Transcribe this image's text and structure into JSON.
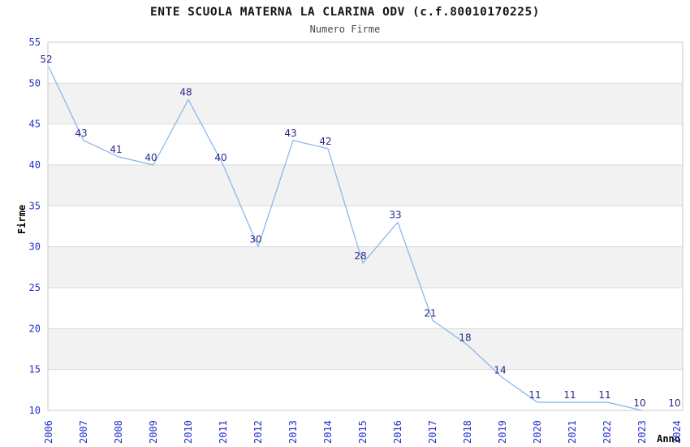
{
  "colors": {
    "line": "#8CB8EA",
    "point_label": "#2A2A8E",
    "tick_label": "#2430CC",
    "title": "#141414",
    "subtitle": "#4A4A4A",
    "axis_title": "#000000",
    "band": "#F2F2F2",
    "gridline": "#D9D9D9",
    "border": "#C9C9C9",
    "background": "#FFFFFF"
  },
  "chart_data": {
    "type": "line",
    "title": "ENTE SCUOLA MATERNA LA CLARINA ODV (c.f.80010170225)",
    "subtitle": "Numero Firme",
    "xlabel": "Anno",
    "ylabel": "Firme",
    "categories": [
      "2006",
      "2007",
      "2008",
      "2009",
      "2010",
      "2011",
      "2012",
      "2013",
      "2014",
      "2015",
      "2016",
      "2017",
      "2018",
      "2019",
      "2020",
      "2021",
      "2022",
      "2023",
      "2024"
    ],
    "values": [
      52,
      43,
      41,
      40,
      48,
      40,
      30,
      43,
      42,
      28,
      33,
      21,
      18,
      14,
      11,
      11,
      11,
      10,
      10
    ],
    "ylim": [
      10,
      55
    ],
    "ytick_step": 5,
    "yticks": [
      10,
      15,
      20,
      25,
      30,
      35,
      40,
      45,
      50,
      55
    ],
    "grid": "horizontal",
    "shaded_bands": [
      [
        15,
        20
      ],
      [
        25,
        30
      ],
      [
        35,
        40
      ],
      [
        45,
        50
      ]
    ],
    "point_labels_visible": true,
    "line_visible_through": "2023",
    "legend": "none"
  }
}
